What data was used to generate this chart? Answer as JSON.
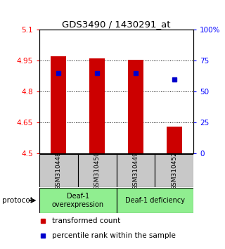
{
  "title": "GDS3490 / 1430291_at",
  "samples": [
    "GSM310448",
    "GSM310450",
    "GSM310449",
    "GSM310452"
  ],
  "red_values": [
    4.97,
    4.96,
    4.955,
    4.63
  ],
  "blue_percentile": [
    65,
    65,
    65,
    60
  ],
  "ylim_left": [
    4.5,
    5.1
  ],
  "ylim_right": [
    0,
    100
  ],
  "yticks_left": [
    4.5,
    4.65,
    4.8,
    4.95,
    5.1
  ],
  "yticks_right": [
    0,
    25,
    50,
    75,
    100
  ],
  "ytick_labels_left": [
    "4.5",
    "4.65",
    "4.8",
    "4.95",
    "5.1"
  ],
  "ytick_labels_right": [
    "0",
    "25",
    "50",
    "75",
    "100%"
  ],
  "groups": [
    {
      "label": "Deaf-1\noverexpression",
      "samples_idx": [
        0,
        1
      ],
      "color": "#90EE90"
    },
    {
      "label": "Deaf-1 deficiency",
      "samples_idx": [
        2,
        3
      ],
      "color": "#90EE90"
    }
  ],
  "bar_color": "#CC0000",
  "blue_dot_color": "#0000CC",
  "bar_width": 0.4,
  "sample_box_color": "#C8C8C8",
  "protocol_label": "protocol",
  "legend_items": [
    {
      "color": "#CC0000",
      "label": "transformed count"
    },
    {
      "color": "#0000CC",
      "label": "percentile rank within the sample"
    }
  ]
}
